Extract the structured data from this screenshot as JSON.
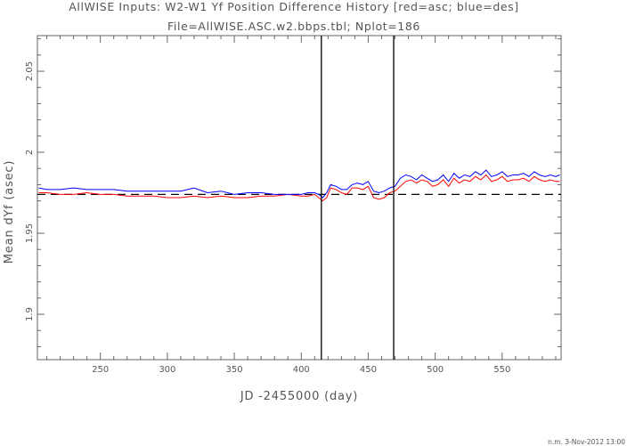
{
  "chart_data": {
    "type": "line",
    "title": "AllWISE Inputs: W2-W1 Yf Position Difference History [red=asc; blue=des]",
    "subtitle": "File=AllWISE.ASC.w2.bbps.tbl; Nplot=186",
    "xlabel": "JD -2455000 (day)",
    "ylabel": "Mean dYf (asec)",
    "footer": "n.m. 3-Nov-2012 13:00",
    "xlim": [
      203,
      594
    ],
    "ylim": [
      1.872,
      2.072
    ],
    "xticks": [
      250,
      300,
      350,
      400,
      450,
      500,
      550
    ],
    "xtick_labels": [
      "250",
      "300",
      "350",
      "400",
      "450",
      "500",
      "550"
    ],
    "yticks": [
      1.9,
      1.95,
      2.0,
      2.05
    ],
    "ytick_labels": [
      "1.9",
      "1.95",
      "2",
      "2.05"
    ],
    "reference_line": {
      "y": 1.974,
      "style": "dashed",
      "color": "#000000"
    },
    "vertical_lines": [
      {
        "x": 415,
        "color": "#000000"
      },
      {
        "x": 469,
        "color": "#000000"
      }
    ],
    "grid": false,
    "series": [
      {
        "color": "#ff0000",
        "x": [
          204,
          210,
          220,
          230,
          240,
          250,
          260,
          270,
          280,
          290,
          300,
          310,
          320,
          330,
          340,
          350,
          360,
          370,
          380,
          390,
          400,
          405,
          410,
          413,
          416,
          419,
          422,
          426,
          430,
          434,
          438,
          442,
          446,
          450,
          454,
          458,
          462,
          466,
          470,
          474,
          478,
          482,
          486,
          490,
          494,
          498,
          502,
          506,
          510,
          514,
          518,
          522,
          526,
          530,
          534,
          538,
          542,
          546,
          550,
          554,
          558,
          562,
          566,
          570,
          574,
          578,
          582,
          586,
          590,
          593
        ],
        "y": [
          1.975,
          1.975,
          1.974,
          1.974,
          1.975,
          1.974,
          1.974,
          1.973,
          1.973,
          1.973,
          1.972,
          1.972,
          1.973,
          1.972,
          1.973,
          1.972,
          1.972,
          1.973,
          1.973,
          1.974,
          1.973,
          1.973,
          1.974,
          1.972,
          1.97,
          1.972,
          1.978,
          1.977,
          1.975,
          1.974,
          1.978,
          1.978,
          1.977,
          1.979,
          1.972,
          1.971,
          1.972,
          1.975,
          1.976,
          1.979,
          1.982,
          1.983,
          1.981,
          1.983,
          1.982,
          1.979,
          1.98,
          1.983,
          1.979,
          1.984,
          1.981,
          1.983,
          1.982,
          1.985,
          1.983,
          1.986,
          1.982,
          1.983,
          1.985,
          1.982,
          1.983,
          1.983,
          1.984,
          1.982,
          1.985,
          1.983,
          1.982,
          1.983,
          1.982,
          1.982
        ]
      },
      {
        "color": "#0000ff",
        "x": [
          204,
          210,
          220,
          230,
          240,
          250,
          260,
          270,
          280,
          290,
          300,
          310,
          320,
          330,
          340,
          350,
          360,
          370,
          380,
          390,
          400,
          405,
          410,
          413,
          416,
          419,
          422,
          426,
          430,
          434,
          438,
          442,
          446,
          450,
          454,
          458,
          462,
          466,
          470,
          474,
          478,
          482,
          486,
          490,
          494,
          498,
          502,
          506,
          510,
          514,
          518,
          522,
          526,
          530,
          534,
          538,
          542,
          546,
          550,
          554,
          558,
          562,
          566,
          570,
          574,
          578,
          582,
          586,
          590,
          593
        ],
        "y": [
          1.978,
          1.977,
          1.977,
          1.978,
          1.977,
          1.977,
          1.977,
          1.976,
          1.976,
          1.976,
          1.976,
          1.976,
          1.978,
          1.975,
          1.976,
          1.974,
          1.975,
          1.975,
          1.974,
          1.974,
          1.974,
          1.975,
          1.975,
          1.974,
          1.972,
          1.975,
          1.98,
          1.979,
          1.977,
          1.977,
          1.98,
          1.981,
          1.98,
          1.982,
          1.976,
          1.975,
          1.976,
          1.978,
          1.979,
          1.984,
          1.986,
          1.985,
          1.983,
          1.986,
          1.984,
          1.982,
          1.983,
          1.986,
          1.982,
          1.987,
          1.984,
          1.986,
          1.985,
          1.988,
          1.986,
          1.989,
          1.985,
          1.986,
          1.988,
          1.985,
          1.986,
          1.986,
          1.987,
          1.985,
          1.988,
          1.986,
          1.985,
          1.986,
          1.985,
          1.986
        ]
      }
    ]
  }
}
